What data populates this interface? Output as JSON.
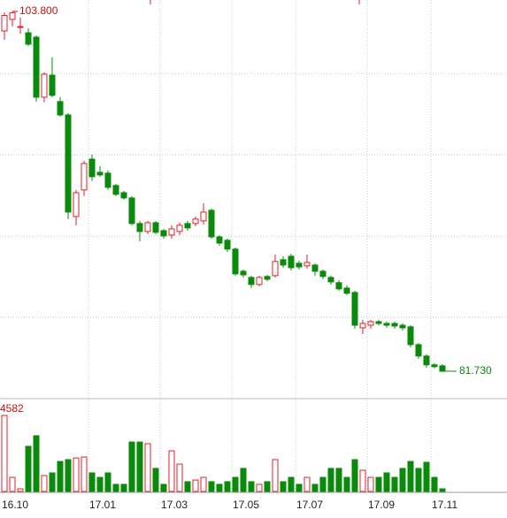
{
  "chart_data": {
    "type": "candlestick",
    "up_color": "#e0202a",
    "down_color": "#0a8a0a",
    "ylim": [
      80.1,
      104.5
    ],
    "volume_ylim": [
      0,
      4582
    ],
    "annotations": {
      "high": "103.800",
      "last": "81.730",
      "volume_max": "4582"
    },
    "categories": [
      "16.10",
      null,
      null,
      null,
      null,
      null,
      null,
      null,
      null,
      null,
      null,
      "17.01",
      null,
      null,
      null,
      null,
      null,
      null,
      null,
      null,
      "17.03",
      null,
      null,
      null,
      null,
      null,
      null,
      null,
      null,
      "17.05",
      null,
      null,
      null,
      null,
      null,
      null,
      null,
      "17.07",
      null,
      null,
      null,
      null,
      null,
      null,
      null,
      null,
      "17.09",
      null,
      null,
      null,
      null,
      null,
      null,
      null,
      "17.11",
      null
    ],
    "ohlc": [
      [
        102.6,
        103.75,
        102.06,
        103.55
      ],
      [
        103.31,
        103.8,
        102.87,
        103.72
      ],
      [
        102.82,
        103.42,
        102.44,
        102.87
      ],
      [
        102.49,
        102.77,
        101.68,
        101.79
      ],
      [
        102.22,
        102.33,
        98.27,
        98.54
      ],
      [
        98.54,
        100.06,
        98.23,
        99.95
      ],
      [
        99.89,
        100.98,
        98.54,
        98.65
      ],
      [
        98.27,
        98.54,
        97.35,
        97.45
      ],
      [
        97.45,
        97.56,
        91.06,
        91.49
      ],
      [
        91.22,
        92.85,
        90.68,
        92.68
      ],
      [
        92.85,
        94.64,
        92.47,
        94.47
      ],
      [
        94.74,
        95.01,
        93.39,
        93.66
      ],
      [
        93.93,
        94.31,
        93.66,
        93.77
      ],
      [
        93.88,
        94.04,
        92.85,
        93.01
      ],
      [
        93.12,
        93.23,
        92.47,
        92.58
      ],
      [
        92.68,
        92.79,
        92.25,
        92.36
      ],
      [
        92.36,
        92.47,
        90.68,
        90.79
      ],
      [
        90.79,
        90.95,
        89.7,
        90.3
      ],
      [
        90.3,
        90.95,
        90.14,
        90.84
      ],
      [
        90.84,
        90.95,
        90.14,
        90.25
      ],
      [
        90.35,
        90.46,
        89.87,
        90.03
      ],
      [
        90.08,
        90.68,
        89.87,
        90.46
      ],
      [
        90.3,
        90.84,
        90.08,
        90.68
      ],
      [
        90.79,
        90.95,
        90.35,
        90.52
      ],
      [
        90.79,
        91.22,
        90.62,
        91.06
      ],
      [
        90.95,
        92.03,
        90.73,
        91.49
      ],
      [
        91.6,
        91.71,
        89.87,
        89.97
      ],
      [
        89.97,
        90.08,
        89.43,
        89.59
      ],
      [
        89.76,
        89.87,
        89.05,
        89.22
      ],
      [
        89.22,
        89.32,
        87.59,
        87.7
      ],
      [
        87.86,
        87.97,
        87.48,
        87.64
      ],
      [
        87.48,
        87.59,
        86.83,
        87.05
      ],
      [
        87.05,
        87.59,
        86.94,
        87.48
      ],
      [
        87.54,
        87.64,
        87.26,
        87.37
      ],
      [
        87.59,
        88.89,
        87.48,
        88.46
      ],
      [
        88.57,
        88.78,
        88.08,
        88.24
      ],
      [
        88.78,
        88.94,
        87.91,
        88.08
      ],
      [
        88.35,
        88.51,
        87.97,
        88.13
      ],
      [
        88.19,
        88.89,
        88.02,
        88.4
      ],
      [
        88.24,
        88.35,
        87.59,
        87.86
      ],
      [
        87.86,
        87.97,
        87.37,
        87.54
      ],
      [
        87.48,
        87.59,
        87.05,
        87.21
      ],
      [
        87.16,
        87.32,
        86.67,
        86.78
      ],
      [
        86.83,
        86.99,
        86.4,
        86.51
      ],
      [
        86.56,
        86.67,
        84.34,
        84.55
      ],
      [
        84.39,
        84.88,
        84.01,
        84.66
      ],
      [
        84.55,
        84.88,
        84.34,
        84.77
      ],
      [
        84.77,
        84.88,
        84.55,
        84.66
      ],
      [
        84.66,
        84.77,
        84.39,
        84.55
      ],
      [
        84.66,
        84.77,
        84.34,
        84.5
      ],
      [
        84.55,
        84.66,
        84.23,
        84.39
      ],
      [
        84.45,
        84.55,
        83.2,
        83.36
      ],
      [
        83.36,
        83.47,
        82.49,
        82.66
      ],
      [
        82.66,
        82.77,
        81.95,
        82.12
      ],
      [
        82.12,
        82.22,
        81.9,
        82.01
      ],
      [
        82.06,
        82.17,
        81.68,
        81.73
      ]
    ],
    "volume": [
      4582,
      850,
      160,
      2720,
      3360,
      960,
      1120,
      1810,
      1920,
      2020,
      2080,
      1120,
      850,
      1120,
      430,
      430,
      2980,
      2980,
      2880,
      1390,
      430,
      2450,
      1650,
      590,
      690,
      850,
      590,
      430,
      590,
      850,
      1390,
      590,
      430,
      590,
      1920,
      590,
      850,
      430,
      850,
      430,
      850,
      1390,
      1390,
      850,
      1920,
      1280,
      850,
      850,
      1120,
      850,
      1390,
      1810,
      1390,
      1760,
      850,
      160
    ]
  }
}
